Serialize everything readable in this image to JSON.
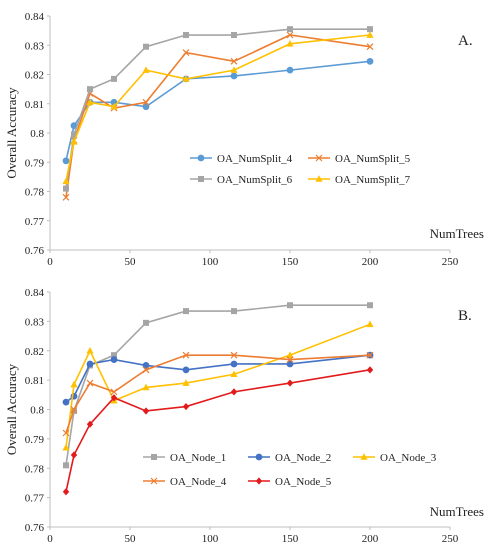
{
  "chart_data": [
    {
      "type": "line",
      "panel_label": "A.",
      "xlabel": "NumTrees",
      "ylabel": "Overall Accuracy",
      "xlim": [
        0,
        250
      ],
      "ylim": [
        0.76,
        0.84
      ],
      "xticks": [
        0,
        50,
        100,
        150,
        200,
        250
      ],
      "yticks": [
        0.76,
        0.77,
        0.78,
        0.79,
        0.8,
        0.81,
        0.82,
        0.83,
        0.84
      ],
      "ytick_labels": [
        "0.76",
        "0.77",
        "0.78",
        "0.79",
        "0.8",
        "0.81",
        "0.82",
        "0.83",
        "0.84"
      ],
      "grid": false,
      "legend_position": "lower-center",
      "x": [
        10,
        15,
        25,
        40,
        60,
        85,
        115,
        150,
        200
      ],
      "series": [
        {
          "name": "OA_NumSplit_4",
          "color": "#5b9bd5",
          "marker": "circle",
          "values": [
            0.7905,
            0.8025,
            0.8105,
            0.8105,
            0.809,
            0.8185,
            0.8195,
            0.8215,
            0.8245
          ]
        },
        {
          "name": "OA_NumSplit_5",
          "color": "#ed7d31",
          "marker": "x",
          "values": [
            0.778,
            0.7975,
            0.8135,
            0.8085,
            0.8105,
            0.8275,
            0.8245,
            0.8335,
            0.8295
          ]
        },
        {
          "name": "OA_NumSplit_6",
          "color": "#a5a5a5",
          "marker": "square",
          "values": [
            0.781,
            0.7995,
            0.815,
            0.8185,
            0.8295,
            0.8335,
            0.8335,
            0.8355,
            0.8355
          ]
        },
        {
          "name": "OA_NumSplit_7",
          "color": "#ffc000",
          "marker": "triangle",
          "values": [
            0.7835,
            0.797,
            0.8105,
            0.809,
            0.8215,
            0.8185,
            0.8215,
            0.8305,
            0.8335
          ]
        }
      ]
    },
    {
      "type": "line",
      "panel_label": "B.",
      "xlabel": "NumTrees",
      "ylabel": "Overall Accuracy",
      "xlim": [
        0,
        250
      ],
      "ylim": [
        0.76,
        0.84
      ],
      "xticks": [
        0,
        50,
        100,
        150,
        200,
        250
      ],
      "yticks": [
        0.76,
        0.77,
        0.78,
        0.79,
        0.8,
        0.81,
        0.82,
        0.83,
        0.84
      ],
      "ytick_labels": [
        "0.76",
        "0.77",
        "0.78",
        "0.79",
        "0.8",
        "0.81",
        "0.82",
        "0.83",
        "0.84"
      ],
      "grid": false,
      "legend_position": "lower-center",
      "x": [
        10,
        15,
        25,
        40,
        60,
        85,
        115,
        150,
        200
      ],
      "series": [
        {
          "name": "OA_Node_1",
          "color": "#a5a5a5",
          "marker": "square",
          "values": [
            0.781,
            0.7995,
            0.815,
            0.8185,
            0.8295,
            0.8335,
            0.8335,
            0.8355,
            0.8355
          ]
        },
        {
          "name": "OA_Node_2",
          "color": "#4472c4",
          "marker": "circle",
          "values": [
            0.8025,
            0.8045,
            0.8155,
            0.817,
            0.815,
            0.8135,
            0.8155,
            0.8155,
            0.8185
          ]
        },
        {
          "name": "OA_Node_3",
          "color": "#ffc000",
          "marker": "triangle",
          "values": [
            0.787,
            0.8085,
            0.82,
            0.803,
            0.8075,
            0.809,
            0.812,
            0.8185,
            0.829
          ]
        },
        {
          "name": "OA_Node_4",
          "color": "#ed7d31",
          "marker": "x",
          "values": [
            0.792,
            0.8,
            0.809,
            0.806,
            0.8135,
            0.8185,
            0.8185,
            0.817,
            0.8185
          ]
        },
        {
          "name": "OA_Node_5",
          "color": "#e31a1c",
          "marker": "diamond",
          "values": [
            0.772,
            0.7845,
            0.795,
            0.804,
            0.7995,
            0.801,
            0.806,
            0.809,
            0.8135
          ]
        }
      ]
    }
  ]
}
